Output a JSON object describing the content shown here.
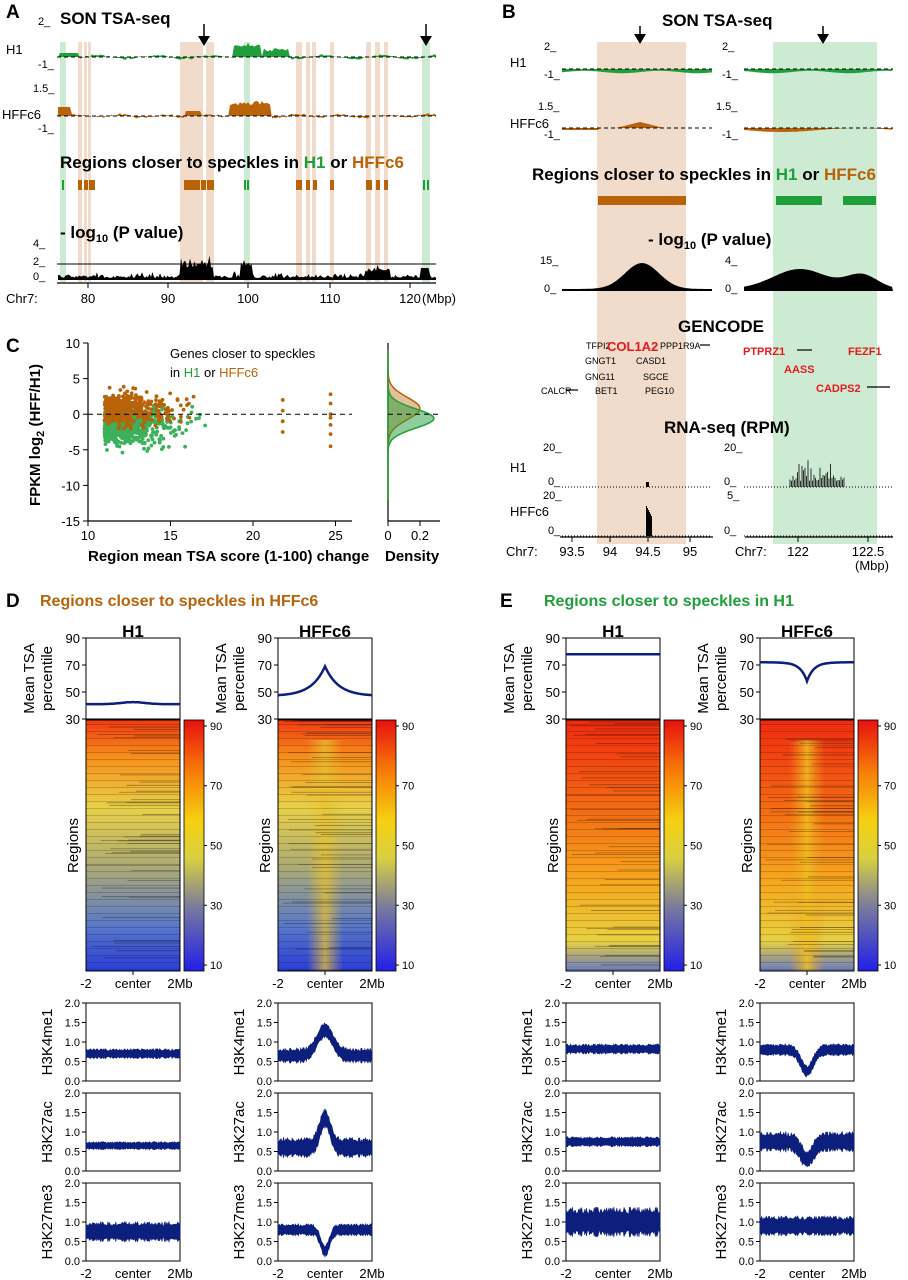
{
  "panels": {
    "a": "A",
    "b": "B",
    "c": "C",
    "d": "D",
    "e": "E"
  },
  "a": {
    "title": "SON TSA-seq",
    "h1": "H1",
    "hffc6": "HFFc6",
    "h1_top": "2_",
    "h1_bot": "-1_",
    "hff_top": "1.5_",
    "hff_bot": "-1_",
    "regions_pre": "Regions closer to speckles in ",
    "regions_h1": "H1",
    "regions_or": " or ",
    "regions_hff": "HFFc6",
    "pval_pre": "- log",
    "pval_sub": "10",
    "pval_post": " (P value)",
    "p_top": "4_",
    "p_mid": "2_",
    "p_bot": "0_",
    "chr": "Chr7:",
    "ticks": [
      "80",
      "90",
      "100",
      "110",
      "120"
    ],
    "unit": "(Mbp)"
  },
  "b": {
    "title": "SON TSA-seq",
    "h1": "H1",
    "hffc6": "HFFc6",
    "h1_top": "2_",
    "h1_bot": "-1_",
    "hff_top": "1.5_",
    "hff_bot": "-1_",
    "regions_pre": "Regions closer to speckles in ",
    "regions_h1": "H1",
    "regions_or": " or ",
    "regions_hff": "HFFc6",
    "pval_pre": "- log",
    "pval_sub": "10",
    "pval_post": " (P value)",
    "p_left_top": "15_",
    "p_right_top": "4_",
    "p_bot": "0_",
    "gencode": "GENCODE",
    "genes_left": [
      "TFPI2",
      "COL1A2",
      "PPP1R9A",
      "GNGT1",
      "CASD1",
      "GNG11",
      "SGCE",
      "CALCR",
      "BET1",
      "PEG10"
    ],
    "genes_right": [
      "PTPRZ1",
      "FEZF1",
      "AASS",
      "CADPS2"
    ],
    "rnaseq": "RNA-seq (RPM)",
    "rna_h1_left_top": "20_",
    "rna_h1_right_top": "20_",
    "rna_hff_left_top": "20_",
    "rna_hff_right_top": "5_",
    "rna_bot": "0_",
    "chr": "Chr7:",
    "ticks_left": [
      "93.5",
      "94",
      "94.5",
      "95"
    ],
    "ticks_right": [
      "122",
      "122.5"
    ],
    "unit": "(Mbp)"
  },
  "c": {
    "legend_line1": "Genes closer to speckles",
    "legend_in": "in ",
    "legend_h1": "H1",
    "legend_or": " or ",
    "legend_hff": "HFFc6",
    "ylabel_pre": "FPKM log",
    "ylabel_sub": "2",
    "ylabel_post": " (HFF/H1)",
    "xlabel": "Region mean TSA score (1-100) change",
    "density_label": "Density",
    "yticks": [
      "10",
      "5",
      "0",
      "-5",
      "-10",
      "-15"
    ],
    "xticks": [
      "10",
      "15",
      "20",
      "25"
    ],
    "dticks": [
      "0",
      "0.2"
    ]
  },
  "d": {
    "title": "Regions closer to speckles in HFFc6",
    "cols": [
      "H1",
      "HFFc6"
    ],
    "mean_label_1": "Mean TSA",
    "mean_label_2": "percentile",
    "mean_ticks": [
      "90",
      "70",
      "50",
      "30"
    ],
    "regions": "Regions",
    "cbar_ticks": [
      "90",
      "70",
      "50",
      "30",
      "10"
    ],
    "marks": [
      "H3K4me1",
      "H3K27ac",
      "H3K27me3"
    ],
    "mark_ticks": [
      "2.0",
      "1.5",
      "1.0",
      "0.5",
      "0.0"
    ],
    "x_left": "-2",
    "x_center": "center",
    "x_right": "2Mb"
  },
  "e": {
    "title": "Regions closer to speckles in H1",
    "cols": [
      "H1",
      "HFFc6"
    ],
    "mean_label_1": "Mean TSA",
    "mean_label_2": "percentile",
    "mean_ticks": [
      "90",
      "70",
      "50",
      "30"
    ],
    "regions": "Regions",
    "cbar_ticks": [
      "90",
      "70",
      "50",
      "30",
      "10"
    ],
    "marks": [
      "H3K4me1",
      "H3K27ac",
      "H3K27me3"
    ],
    "mark_ticks": [
      "2.0",
      "1.5",
      "1.0",
      "0.5",
      "0.0"
    ],
    "x_left": "-2",
    "x_center": "center",
    "x_right": "2Mb"
  },
  "colors": {
    "h1": "#1f9e3a",
    "hffc6": "#b8620a",
    "navy": "#0d1f7d",
    "hl_orange": "#f1dccb",
    "hl_green": "#cdebd3",
    "gene_red": "#e41a1c"
  }
}
